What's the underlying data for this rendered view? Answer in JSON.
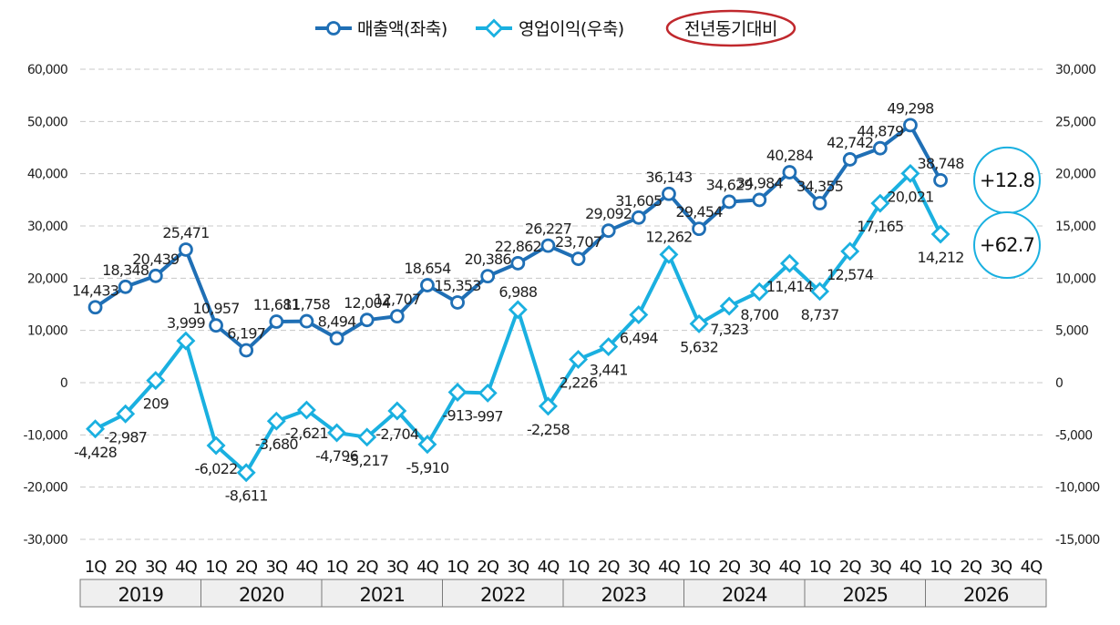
{
  "chart_data": {
    "type": "line",
    "legend": {
      "position": "top-center",
      "entries": [
        "매출액(좌축)",
        "영업이익(우축)",
        "전년동기대비"
      ]
    },
    "quarter_labels": [
      "1Q",
      "2Q",
      "3Q",
      "4Q",
      "1Q",
      "2Q",
      "3Q",
      "4Q",
      "1Q",
      "2Q",
      "3Q",
      "4Q",
      "1Q",
      "2Q",
      "3Q",
      "4Q",
      "1Q",
      "2Q",
      "3Q",
      "4Q",
      "1Q",
      "2Q",
      "3Q",
      "4Q",
      "1Q",
      "2Q",
      "3Q",
      "4Q",
      "1Q",
      "2Q",
      "3Q",
      "4Q"
    ],
    "years": [
      "2019",
      "2020",
      "2021",
      "2022",
      "2023",
      "2024",
      "2025",
      "2026"
    ],
    "y_left": {
      "min": -30000,
      "max": 60000,
      "step": 10000,
      "ticks": [
        "-30,000",
        "-20,000",
        "-10,000",
        "0",
        "10,000",
        "20,000",
        "30,000",
        "40,000",
        "50,000",
        "60,000"
      ]
    },
    "y_right": {
      "min": -15000,
      "max": 30000,
      "ticks": [
        "-15,000",
        "-10,000",
        "-5,000",
        "0",
        "5,000",
        "10,000",
        "15,000",
        "20,000",
        "25,000",
        "30,000"
      ]
    },
    "grid": "horizontal-dashed",
    "series": [
      {
        "name": "매출액(좌축)",
        "axis": "left",
        "color": "#1f6fb5",
        "marker": "circle",
        "values": [
          14433,
          18348,
          20439,
          25471,
          10957,
          6197,
          11681,
          11758,
          8494,
          12004,
          12707,
          18654,
          15353,
          20386,
          22862,
          26227,
          23707,
          29092,
          31605,
          36143,
          29454,
          34629,
          34984,
          40284,
          34355,
          42742,
          44879,
          49298,
          38748
        ],
        "labels": [
          "14,433",
          "18,348",
          "20,439",
          "25,471",
          "10,957",
          "6,197",
          "11,681",
          "11,758",
          "8,494",
          "12,004",
          "12,707",
          "18,654",
          "15,353",
          "20,386",
          "22,862",
          "26,227",
          "23,707",
          "29,092",
          "31,605",
          "36,143",
          "29,454",
          "34,629",
          "34,984",
          "40,284",
          "34,355",
          "42,742",
          "44,879",
          "49,298",
          "38,748"
        ]
      },
      {
        "name": "영업이익(우축)",
        "axis": "right",
        "color": "#1ab0e0",
        "marker": "diamond",
        "values": [
          -4428,
          -2987,
          209,
          3999,
          -6022,
          -8611,
          -3680,
          -2621,
          -4796,
          -5217,
          -2704,
          -5910,
          -913,
          -997,
          6988,
          -2258,
          2226,
          3441,
          6494,
          12262,
          5632,
          7323,
          8700,
          11414,
          8737,
          12574,
          17165,
          20021,
          14212
        ],
        "labels": [
          "-4,428",
          "-2,987",
          "209",
          "3,999",
          "-6,022",
          "-8,611",
          "-3,680",
          "-2,621",
          "-4,796",
          "-5,217",
          "-2,704",
          "-5,910",
          "-913",
          "-997",
          "6,988",
          "-2,258",
          "2,226",
          "3,441",
          "6,494",
          "12,262",
          "5,632",
          "7,323",
          "8,700",
          "11,414",
          "8,737",
          "12,574",
          "17,165",
          "20,021",
          "14,212"
        ]
      }
    ],
    "annotations": [
      {
        "text": "+12.8",
        "series": "매출액(좌축)",
        "ring_color": "#1ab0e0"
      },
      {
        "text": "+62.7",
        "series": "영업이익(우축)",
        "ring_color": "#1ab0e0"
      }
    ],
    "legend_oval_color": "#c0282d"
  }
}
